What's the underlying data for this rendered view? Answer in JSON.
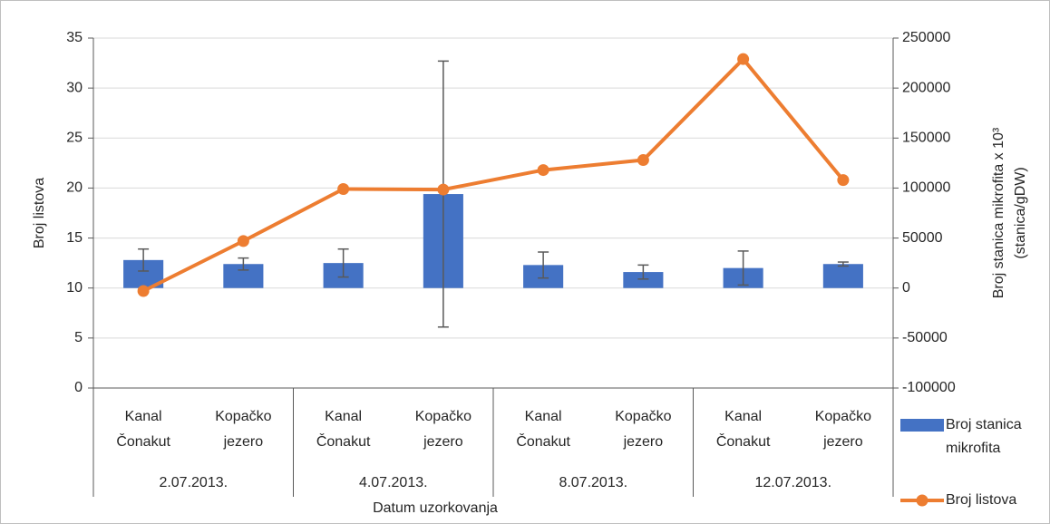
{
  "chart_data": {
    "type": "bar-line",
    "categories": [
      [
        "Kanal",
        "Čonakut"
      ],
      [
        "Kopačko",
        "jezero"
      ],
      [
        "Kanal",
        "Čonakut"
      ],
      [
        "Kopačko",
        "jezero"
      ],
      [
        "Kanal",
        "Čonakut"
      ],
      [
        "Kopačko",
        "jezero"
      ],
      [
        "Kanal",
        "Čonakut"
      ],
      [
        "Kopačko",
        "jezero"
      ]
    ],
    "groups": [
      "2.07.2013.",
      "4.07.2013.",
      "8.07.2013.",
      "12.07.2013."
    ],
    "x_label": "Datum uzorkovanja",
    "y_label": "Broj listova",
    "y2_label": [
      "Broj stanica mikrofita x 10³",
      "(stanica/gDW)"
    ],
    "ylim": [
      0,
      35
    ],
    "yticks": [
      0,
      5,
      10,
      15,
      20,
      25,
      30,
      35
    ],
    "y2lim": [
      -100000,
      250000
    ],
    "y2ticks": [
      -100000,
      -50000,
      0,
      50000,
      100000,
      150000,
      200000,
      250000
    ],
    "grid": true,
    "legend": "right",
    "series": [
      {
        "name": "Broj stanica mikrofita",
        "type": "bar",
        "axis": "y2",
        "color": "#4472c4",
        "values": [
          28000,
          24000,
          25000,
          94000,
          23000,
          16000,
          20000,
          24000
        ],
        "errors": [
          11000,
          6000,
          14000,
          133000,
          13000,
          7000,
          17000,
          2000
        ]
      },
      {
        "name": "Broj listova",
        "type": "line",
        "color": "#ed7d31",
        "values": [
          9.7,
          14.7,
          19.9,
          19.85,
          21.8,
          22.8,
          32.9,
          20.8
        ]
      }
    ]
  }
}
